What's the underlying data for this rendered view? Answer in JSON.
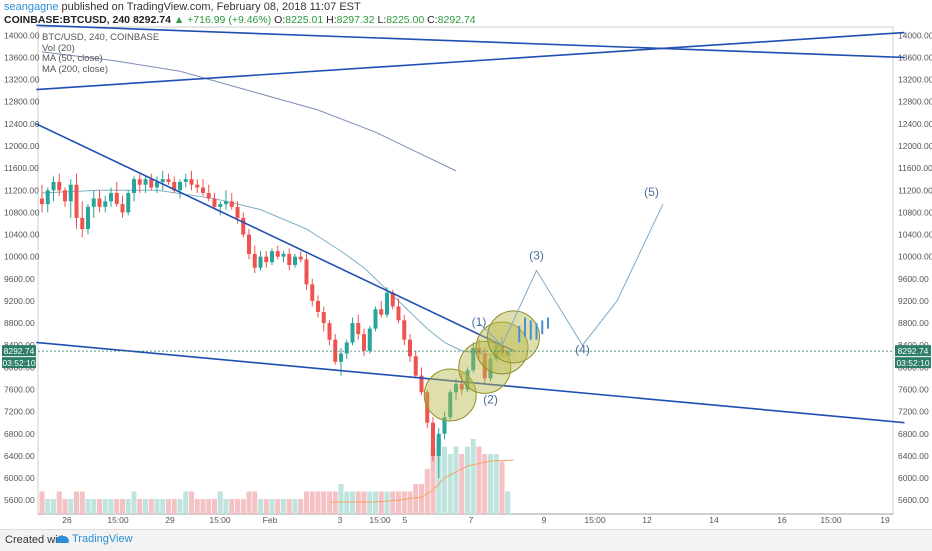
{
  "header": {
    "user": "seangagne",
    "published": " published on TradingView.com, February 08, 2018 11:07 EST",
    "symbol": "COINBASE:BTCUSD, 240",
    "last": "8292.74",
    "change": "▲ +716.99 (+9.46%)",
    "o_label": "O:",
    "o": "8225.01",
    "h_label": "H:",
    "h": "8297.32",
    "l_label": "L:",
    "l": "8225.00",
    "c_label": "C:",
    "c": "8292.74"
  },
  "legend": [
    "BTC/USD, 240, COINBASE",
    "Vol (20)",
    "MA (50, close)",
    "MA (200, close)"
  ],
  "price_tag": "8292.74",
  "time_tag": "03:52:10",
  "footer": {
    "created": "Created with",
    "brand": "TradingView"
  },
  "colors": {
    "up": "#26a69a",
    "up_fill": "#26a69a",
    "down": "#ef5350",
    "trendline": "#1f4fb3",
    "ma50": "#7fb0c6",
    "ma200": "#7f8fb8",
    "vol_up": "#bfe3dd",
    "vol_down": "#f4c2c4",
    "vol_ma": "#f5a46a",
    "circle": "#b7b84a",
    "projection": "#7fa9c8",
    "wave_label": "#4a6d9a",
    "tag": "#2e7d6b"
  },
  "chart_data": {
    "type": "candlestick",
    "yaxis_ticks": [
      5600,
      6000,
      6400,
      6800,
      7200,
      7600,
      8000,
      8400,
      8800,
      9200,
      9600,
      10000,
      10400,
      10800,
      11200,
      11600,
      12000,
      12400,
      12800,
      13200,
      13600,
      14000
    ],
    "yaxis_tick_labels_left": [
      "5600.00",
      "6000.00",
      "6400.00",
      "6800.00",
      "7200.00",
      "7600.00",
      "8000.00",
      "8400.00",
      "8800.00",
      "9200.00",
      "9600.00",
      "10000.00",
      "10400.00",
      "10800.00",
      "11200.00",
      "11600.00",
      "12000.00",
      "12400.00",
      "12800.00",
      "13200.00",
      "13600.00",
      "14000.00"
    ],
    "yaxis_tick_labels_right": [
      "5600.00",
      "6000.00",
      "6400.00",
      "6800.00",
      "7200.00",
      "7600.00",
      "8000.00",
      "8400.00",
      "8800.00",
      "9200.00",
      "9600.00",
      "10000.00",
      "10400.00",
      "10800.00",
      "11200.00",
      "11600.00",
      "12000.00",
      "12400.00",
      "12800.00",
      "13200.00",
      "13600.00",
      "14000.00"
    ],
    "ylim": [
      5350,
      14150
    ],
    "xaxis_labels": [
      "26",
      "15:00",
      "29",
      "15:00",
      "Feb",
      "3",
      "15:00",
      "5",
      "7",
      "9",
      "15:00",
      "12",
      "14",
      "16",
      "15:00",
      "19"
    ],
    "candles_ohlc": [
      [
        11050,
        11300,
        10800,
        10950
      ],
      [
        10950,
        11250,
        10800,
        11200
      ],
      [
        11200,
        11450,
        11000,
        11350
      ],
      [
        11350,
        11500,
        11100,
        11200
      ],
      [
        11200,
        11250,
        10900,
        11000
      ],
      [
        11000,
        11400,
        10700,
        11300
      ],
      [
        11300,
        11500,
        10500,
        10700
      ],
      [
        10700,
        11000,
        10350,
        10500
      ],
      [
        10500,
        10950,
        10400,
        10900
      ],
      [
        10900,
        11200,
        10700,
        11050
      ],
      [
        11050,
        11200,
        10800,
        10900
      ],
      [
        10900,
        11100,
        10800,
        11000
      ],
      [
        11000,
        11250,
        10900,
        11150
      ],
      [
        11150,
        11350,
        10900,
        10950
      ],
      [
        10950,
        11100,
        10700,
        10800
      ],
      [
        10800,
        11200,
        10750,
        11150
      ],
      [
        11150,
        11450,
        11000,
        11400
      ],
      [
        11400,
        11500,
        11150,
        11300
      ],
      [
        11300,
        11450,
        11150,
        11400
      ],
      [
        11400,
        11500,
        11200,
        11250
      ],
      [
        11250,
        11450,
        11150,
        11350
      ],
      [
        11350,
        11550,
        11200,
        11400
      ],
      [
        11400,
        11500,
        11300,
        11350
      ],
      [
        11350,
        11450,
        11150,
        11200
      ],
      [
        11200,
        11400,
        11050,
        11350
      ],
      [
        11350,
        11500,
        11250,
        11400
      ],
      [
        11400,
        11550,
        11200,
        11300
      ],
      [
        11300,
        11400,
        11150,
        11250
      ],
      [
        11250,
        11400,
        11100,
        11150
      ],
      [
        11150,
        11300,
        11000,
        11050
      ],
      [
        11050,
        11150,
        10850,
        10900
      ],
      [
        10900,
        11000,
        10750,
        10950
      ],
      [
        10950,
        11200,
        10850,
        11000
      ],
      [
        11000,
        11150,
        10850,
        10900
      ],
      [
        10900,
        11000,
        10600,
        10700
      ],
      [
        10700,
        10800,
        10350,
        10400
      ],
      [
        10400,
        10500,
        9950,
        10050
      ],
      [
        10050,
        10200,
        9700,
        9800
      ],
      [
        9800,
        10100,
        9750,
        10000
      ],
      [
        10000,
        10100,
        9800,
        9900
      ],
      [
        9900,
        10150,
        9850,
        10100
      ],
      [
        10100,
        10200,
        9950,
        10000
      ],
      [
        10000,
        10100,
        9900,
        10050
      ],
      [
        10050,
        10150,
        9750,
        9850
      ],
      [
        9850,
        10050,
        9800,
        10000
      ],
      [
        10000,
        10100,
        9900,
        9950
      ],
      [
        9950,
        10050,
        9400,
        9500
      ],
      [
        9500,
        9600,
        9100,
        9200
      ],
      [
        9200,
        9300,
        8900,
        9000
      ],
      [
        9000,
        9100,
        8650,
        8800
      ],
      [
        8800,
        8850,
        8400,
        8500
      ],
      [
        8500,
        8600,
        8050,
        8100
      ],
      [
        8100,
        8350,
        7850,
        8250
      ],
      [
        8250,
        8500,
        8150,
        8450
      ],
      [
        8450,
        8900,
        8400,
        8800
      ],
      [
        8800,
        8950,
        8500,
        8600
      ],
      [
        8600,
        8700,
        8200,
        8300
      ],
      [
        8300,
        8750,
        8250,
        8700
      ],
      [
        8700,
        9100,
        8650,
        9050
      ],
      [
        9050,
        9200,
        8900,
        8950
      ],
      [
        8950,
        9450,
        8900,
        9350
      ],
      [
        9350,
        9400,
        9050,
        9100
      ],
      [
        9100,
        9250,
        8800,
        8850
      ],
      [
        8850,
        8950,
        8400,
        8500
      ],
      [
        8500,
        8600,
        8100,
        8200
      ],
      [
        8200,
        8300,
        7800,
        7850
      ],
      [
        7850,
        8000,
        7500,
        7550
      ],
      [
        7550,
        7600,
        6900,
        7000
      ],
      [
        7000,
        7100,
        6300,
        6400
      ],
      [
        6400,
        6900,
        6000,
        6800
      ],
      [
        6800,
        7200,
        6700,
        7100
      ],
      [
        7100,
        7600,
        7050,
        7550
      ],
      [
        7550,
        7800,
        7400,
        7700
      ],
      [
        7700,
        7900,
        7500,
        7600
      ],
      [
        7600,
        8000,
        7550,
        7950
      ],
      [
        7950,
        8450,
        7900,
        8350
      ],
      [
        8350,
        8500,
        8150,
        8250
      ],
      [
        8250,
        8350,
        7700,
        7800
      ],
      [
        7800,
        8200,
        7750,
        8150
      ],
      [
        8150,
        8450,
        8100,
        8400
      ],
      [
        8400,
        8550,
        8200,
        8250
      ],
      [
        8225,
        8300,
        8225,
        8290
      ]
    ],
    "volume": [
      3,
      2,
      2,
      3,
      2,
      2,
      3,
      3,
      2,
      2,
      2,
      2,
      2,
      2,
      2,
      2,
      3,
      2,
      2,
      2,
      2,
      2,
      2,
      2,
      2,
      3,
      3,
      2,
      2,
      2,
      2,
      3,
      2,
      2,
      2,
      2,
      3,
      3,
      2,
      2,
      2,
      2,
      2,
      2,
      2,
      2,
      3,
      3,
      3,
      3,
      3,
      3,
      4,
      3,
      3,
      3,
      3,
      3,
      3,
      3,
      3,
      3,
      3,
      3,
      3,
      4,
      4,
      6,
      9,
      10,
      9,
      8,
      9,
      8,
      9,
      10,
      9,
      8,
      8,
      8,
      7,
      3
    ],
    "ma50_points": [
      [
        0,
        11150
      ],
      [
        10,
        11200
      ],
      [
        20,
        11200
      ],
      [
        30,
        11050
      ],
      [
        38,
        10850
      ],
      [
        46,
        10500
      ],
      [
        52,
        10100
      ],
      [
        56,
        9800
      ],
      [
        60,
        9400
      ],
      [
        64,
        9000
      ],
      [
        67,
        8700
      ],
      [
        70,
        8450
      ],
      [
        73,
        8300
      ],
      [
        76,
        8250
      ],
      [
        80,
        8200
      ],
      [
        82,
        8220
      ]
    ],
    "ma200_points": [
      [
        0,
        13700
      ],
      [
        12,
        13550
      ],
      [
        24,
        13350
      ],
      [
        36,
        13000
      ],
      [
        48,
        12650
      ],
      [
        58,
        12250
      ],
      [
        66,
        11850
      ],
      [
        72,
        11550
      ]
    ],
    "trendlines": [
      [
        [
          -1,
          14180
        ],
        [
          150,
          13600
        ]
      ],
      [
        [
          -1,
          13020
        ],
        [
          150,
          14050
        ]
      ],
      [
        [
          -1,
          12400
        ],
        [
          82,
          8300
        ]
      ],
      [
        [
          -1,
          8450
        ],
        [
          150,
          7000
        ]
      ]
    ],
    "projection": [
      [
        76,
        8800
      ],
      [
        80,
        8400
      ],
      [
        86,
        9750
      ],
      [
        94,
        8400
      ],
      [
        100,
        9200
      ],
      [
        108,
        10950
      ]
    ],
    "wave_labels": [
      {
        "text": "(1)",
        "i": 76,
        "y": 8750
      },
      {
        "text": "(2)",
        "i": 78,
        "y": 7350
      },
      {
        "text": "(3)",
        "i": 86,
        "y": 9950
      },
      {
        "text": "(4)",
        "i": 94,
        "y": 8250
      },
      {
        "text": "(5)",
        "i": 106,
        "y": 11100
      }
    ],
    "projection_bars": [
      [
        83,
        8750,
        8450
      ],
      [
        84,
        8900,
        8550
      ],
      [
        85,
        8850,
        8500
      ],
      [
        86,
        8800,
        8500
      ],
      [
        87,
        8850,
        8600
      ],
      [
        88,
        8900,
        8700
      ]
    ],
    "circles": [
      [
        71,
        7500
      ],
      [
        77,
        8000
      ],
      [
        80,
        8350
      ],
      [
        82,
        8550
      ]
    ]
  }
}
